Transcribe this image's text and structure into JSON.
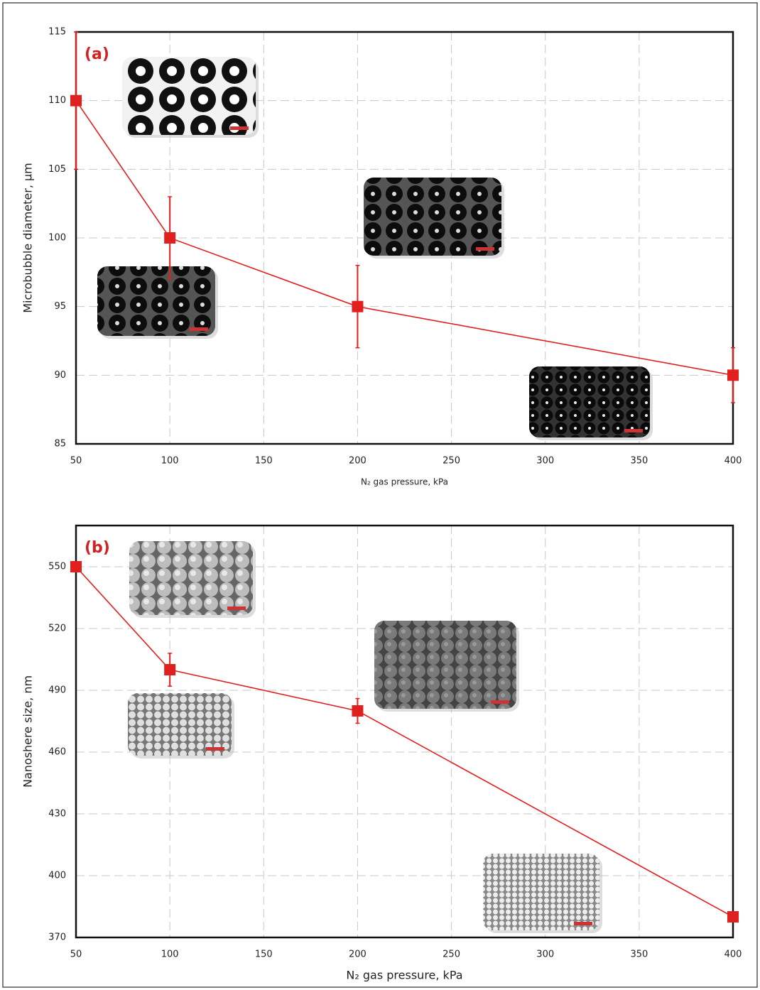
{
  "chart_data": [
    {
      "type": "line",
      "annotation": "(a)",
      "x_label": "N₂ gas pressure, kPa",
      "y_label": "Microbubble diameter, μm",
      "x": [
        50,
        100,
        200,
        400
      ],
      "series": [
        {
          "color": "#e0201f",
          "values": [
            110,
            100,
            95,
            90
          ],
          "errors": [
            5,
            3,
            3,
            2
          ]
        }
      ],
      "xlim": [
        50,
        400
      ],
      "xticks": [
        50,
        100,
        150,
        200,
        250,
        300,
        350,
        400
      ],
      "ylim": [
        85,
        115
      ],
      "yticks": [
        85,
        90,
        95,
        100,
        105,
        110,
        115
      ],
      "grid": true
    },
    {
      "type": "line",
      "annotation": "(b)",
      "x_label": "N₂ gas pressure, kPa",
      "y_label": "Nanoshere size, nm",
      "x": [
        50,
        100,
        200,
        400
      ],
      "series": [
        {
          "color": "#e0201f",
          "values": [
            550,
            500,
            480,
            380
          ],
          "errors": [
            null,
            8,
            6,
            null
          ]
        }
      ],
      "xlim": [
        50,
        400
      ],
      "xticks": [
        50,
        100,
        150,
        200,
        250,
        300,
        350,
        400
      ],
      "ylim": [
        370,
        570
      ],
      "yticks": [
        370,
        400,
        430,
        460,
        490,
        520,
        550
      ],
      "grid": true
    }
  ]
}
